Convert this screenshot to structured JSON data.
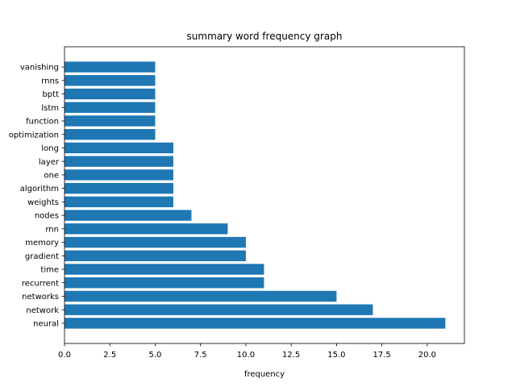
{
  "chart_data": {
    "type": "bar",
    "orientation": "horizontal",
    "title": "summary word frequency graph",
    "xlabel": "frequency",
    "ylabel": "",
    "categories": [
      "neural",
      "network",
      "networks",
      "recurrent",
      "time",
      "gradient",
      "memory",
      "rnn",
      "nodes",
      "weights",
      "algorithm",
      "one",
      "layer",
      "long",
      "optimization",
      "function",
      "lstm",
      "bptt",
      "rnns",
      "vanishing"
    ],
    "values": [
      21,
      17,
      15,
      11,
      11,
      10,
      10,
      9,
      7,
      6,
      6,
      6,
      6,
      6,
      5,
      5,
      5,
      5,
      5,
      5
    ],
    "xlim": [
      0,
      22.05
    ],
    "xticks": [
      0.0,
      2.5,
      5.0,
      7.5,
      10.0,
      12.5,
      15.0,
      17.5,
      20.0
    ],
    "xtick_labels": [
      "0.0",
      "2.5",
      "5.0",
      "7.5",
      "10.0",
      "12.5",
      "15.0",
      "17.5",
      "20.0"
    ],
    "grid": false,
    "bar_color": "#1f77b4"
  }
}
